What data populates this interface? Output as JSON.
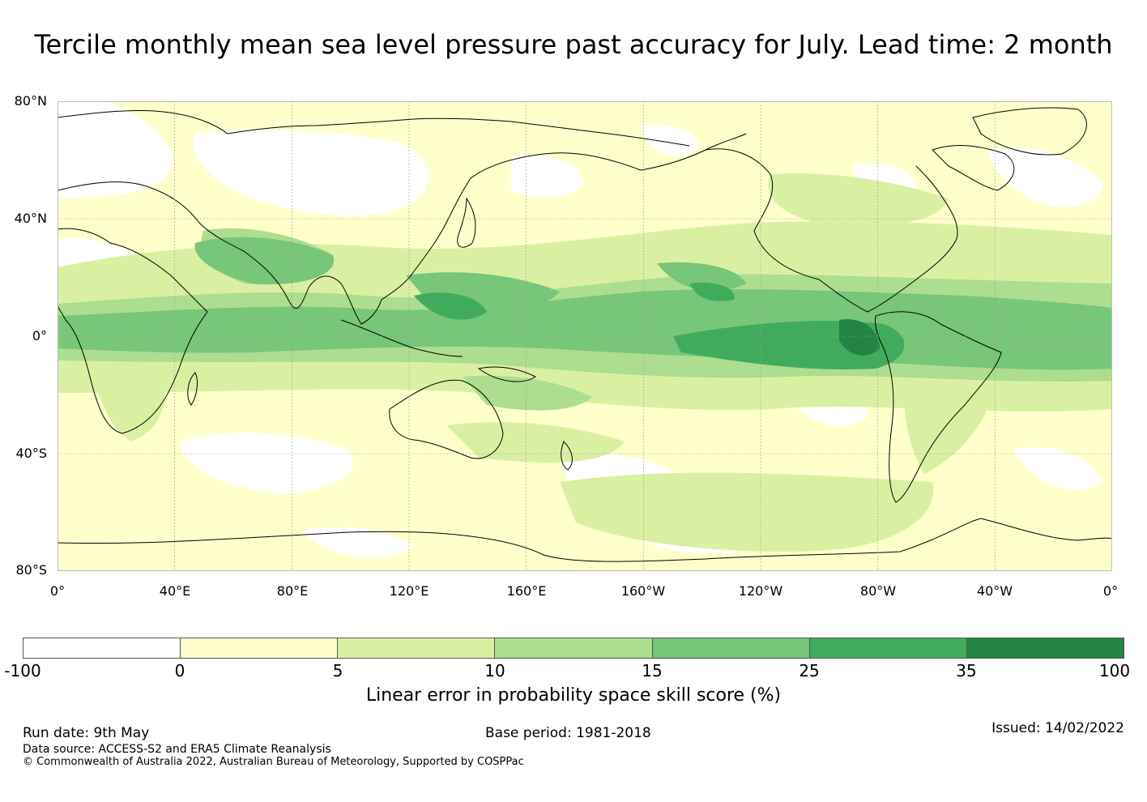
{
  "title": "Tercile monthly mean sea level pressure past accuracy for July. Lead time: 2 month",
  "map": {
    "lat_labels": [
      "80°N",
      "40°N",
      "0°",
      "40°S",
      "80°S"
    ],
    "lon_labels": [
      "0°",
      "40°E",
      "80°E",
      "120°E",
      "160°E",
      "160°W",
      "120°W",
      "80°W",
      "40°W",
      "0°"
    ],
    "grid": true,
    "colors": {
      "below_0": "#ffffff",
      "0_5": "#ffffcc",
      "5_10": "#d9f0a3",
      "10_15": "#addd8e",
      "15_25": "#78c679",
      "25_35": "#41ab5d",
      "35_100": "#238443",
      "coastline": "#000000"
    }
  },
  "colorbar": {
    "ticks": [
      "-100",
      "0",
      "5",
      "10",
      "15",
      "25",
      "35",
      "100"
    ],
    "colors": [
      "#ffffff",
      "#ffffcc",
      "#d9f0a3",
      "#addd8e",
      "#78c679",
      "#41ab5d",
      "#238443"
    ],
    "label": "Linear error in probability space skill score (%)"
  },
  "footer": {
    "run_date": "Run date: 9th May",
    "base_period": "Base period: 1981-2018",
    "issued": "Issued: 14/02/2022",
    "data_source": "Data source: ACCESS-S2 and ERA5 Climate Reanalysis",
    "copyright": "© Commonwealth of Australia 2022, Australian Bureau of Meteorology, Supported by COSPPac"
  }
}
